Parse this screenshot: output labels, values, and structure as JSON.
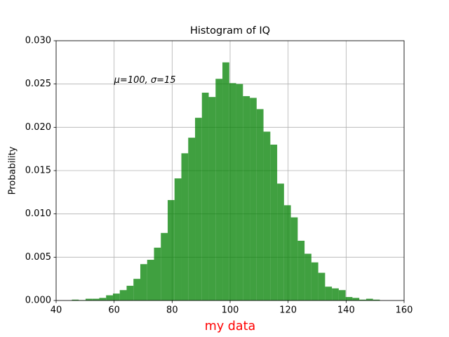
{
  "chart_data": {
    "type": "histogram",
    "title": "Histogram of IQ",
    "xlabel": "my data",
    "xlabel_color": "#ff0000",
    "ylabel": "Probability",
    "bins": [
      45.43,
      47.79,
      50.15,
      52.51,
      54.87,
      57.23,
      59.59,
      61.95,
      64.31,
      66.67,
      69.03,
      71.39,
      73.75,
      76.11,
      78.47,
      80.83,
      83.19,
      85.55,
      87.91,
      90.27,
      92.63,
      94.99,
      97.35,
      99.71,
      102.07,
      104.43,
      106.79,
      109.15,
      111.51,
      113.87,
      116.23,
      118.59,
      120.95,
      123.31,
      125.67,
      128.03,
      130.39,
      132.75,
      135.11,
      137.47,
      139.83,
      142.19,
      144.55,
      146.91,
      149.27,
      151.63
    ],
    "values": [
      0.0001,
      5e-05,
      0.0002,
      0.0002,
      0.0003,
      0.0006,
      0.0008,
      0.0012,
      0.0017,
      0.0025,
      0.0042,
      0.0047,
      0.0061,
      0.0078,
      0.0116,
      0.0141,
      0.017,
      0.0188,
      0.0211,
      0.024,
      0.0235,
      0.0256,
      0.0275,
      0.0251,
      0.025,
      0.0236,
      0.0234,
      0.0221,
      0.0195,
      0.018,
      0.0135,
      0.011,
      0.0096,
      0.0069,
      0.0054,
      0.0044,
      0.0032,
      0.0016,
      0.0014,
      0.0012,
      0.0004,
      0.0003,
      0.0001,
      0.0002,
      0.0001
    ],
    "color": "#008000",
    "opacity": 0.75,
    "xlim": [
      40,
      160
    ],
    "xticks": [
      40,
      60,
      80,
      100,
      120,
      140,
      160
    ],
    "ylim": [
      0,
      0.03
    ],
    "yticks": [
      {
        "value": 0,
        "label": "0.000"
      },
      0.005,
      {
        "value": 0.01,
        "label": "0.010"
      },
      0.015,
      {
        "value": 0.02,
        "label": "0.020"
      },
      0.025,
      {
        "value": 0.03,
        "label": "0.030"
      }
    ],
    "grid": true,
    "annotation": {
      "text": "μ=100,  σ=15",
      "x": 60,
      "y": 0.025
    }
  }
}
